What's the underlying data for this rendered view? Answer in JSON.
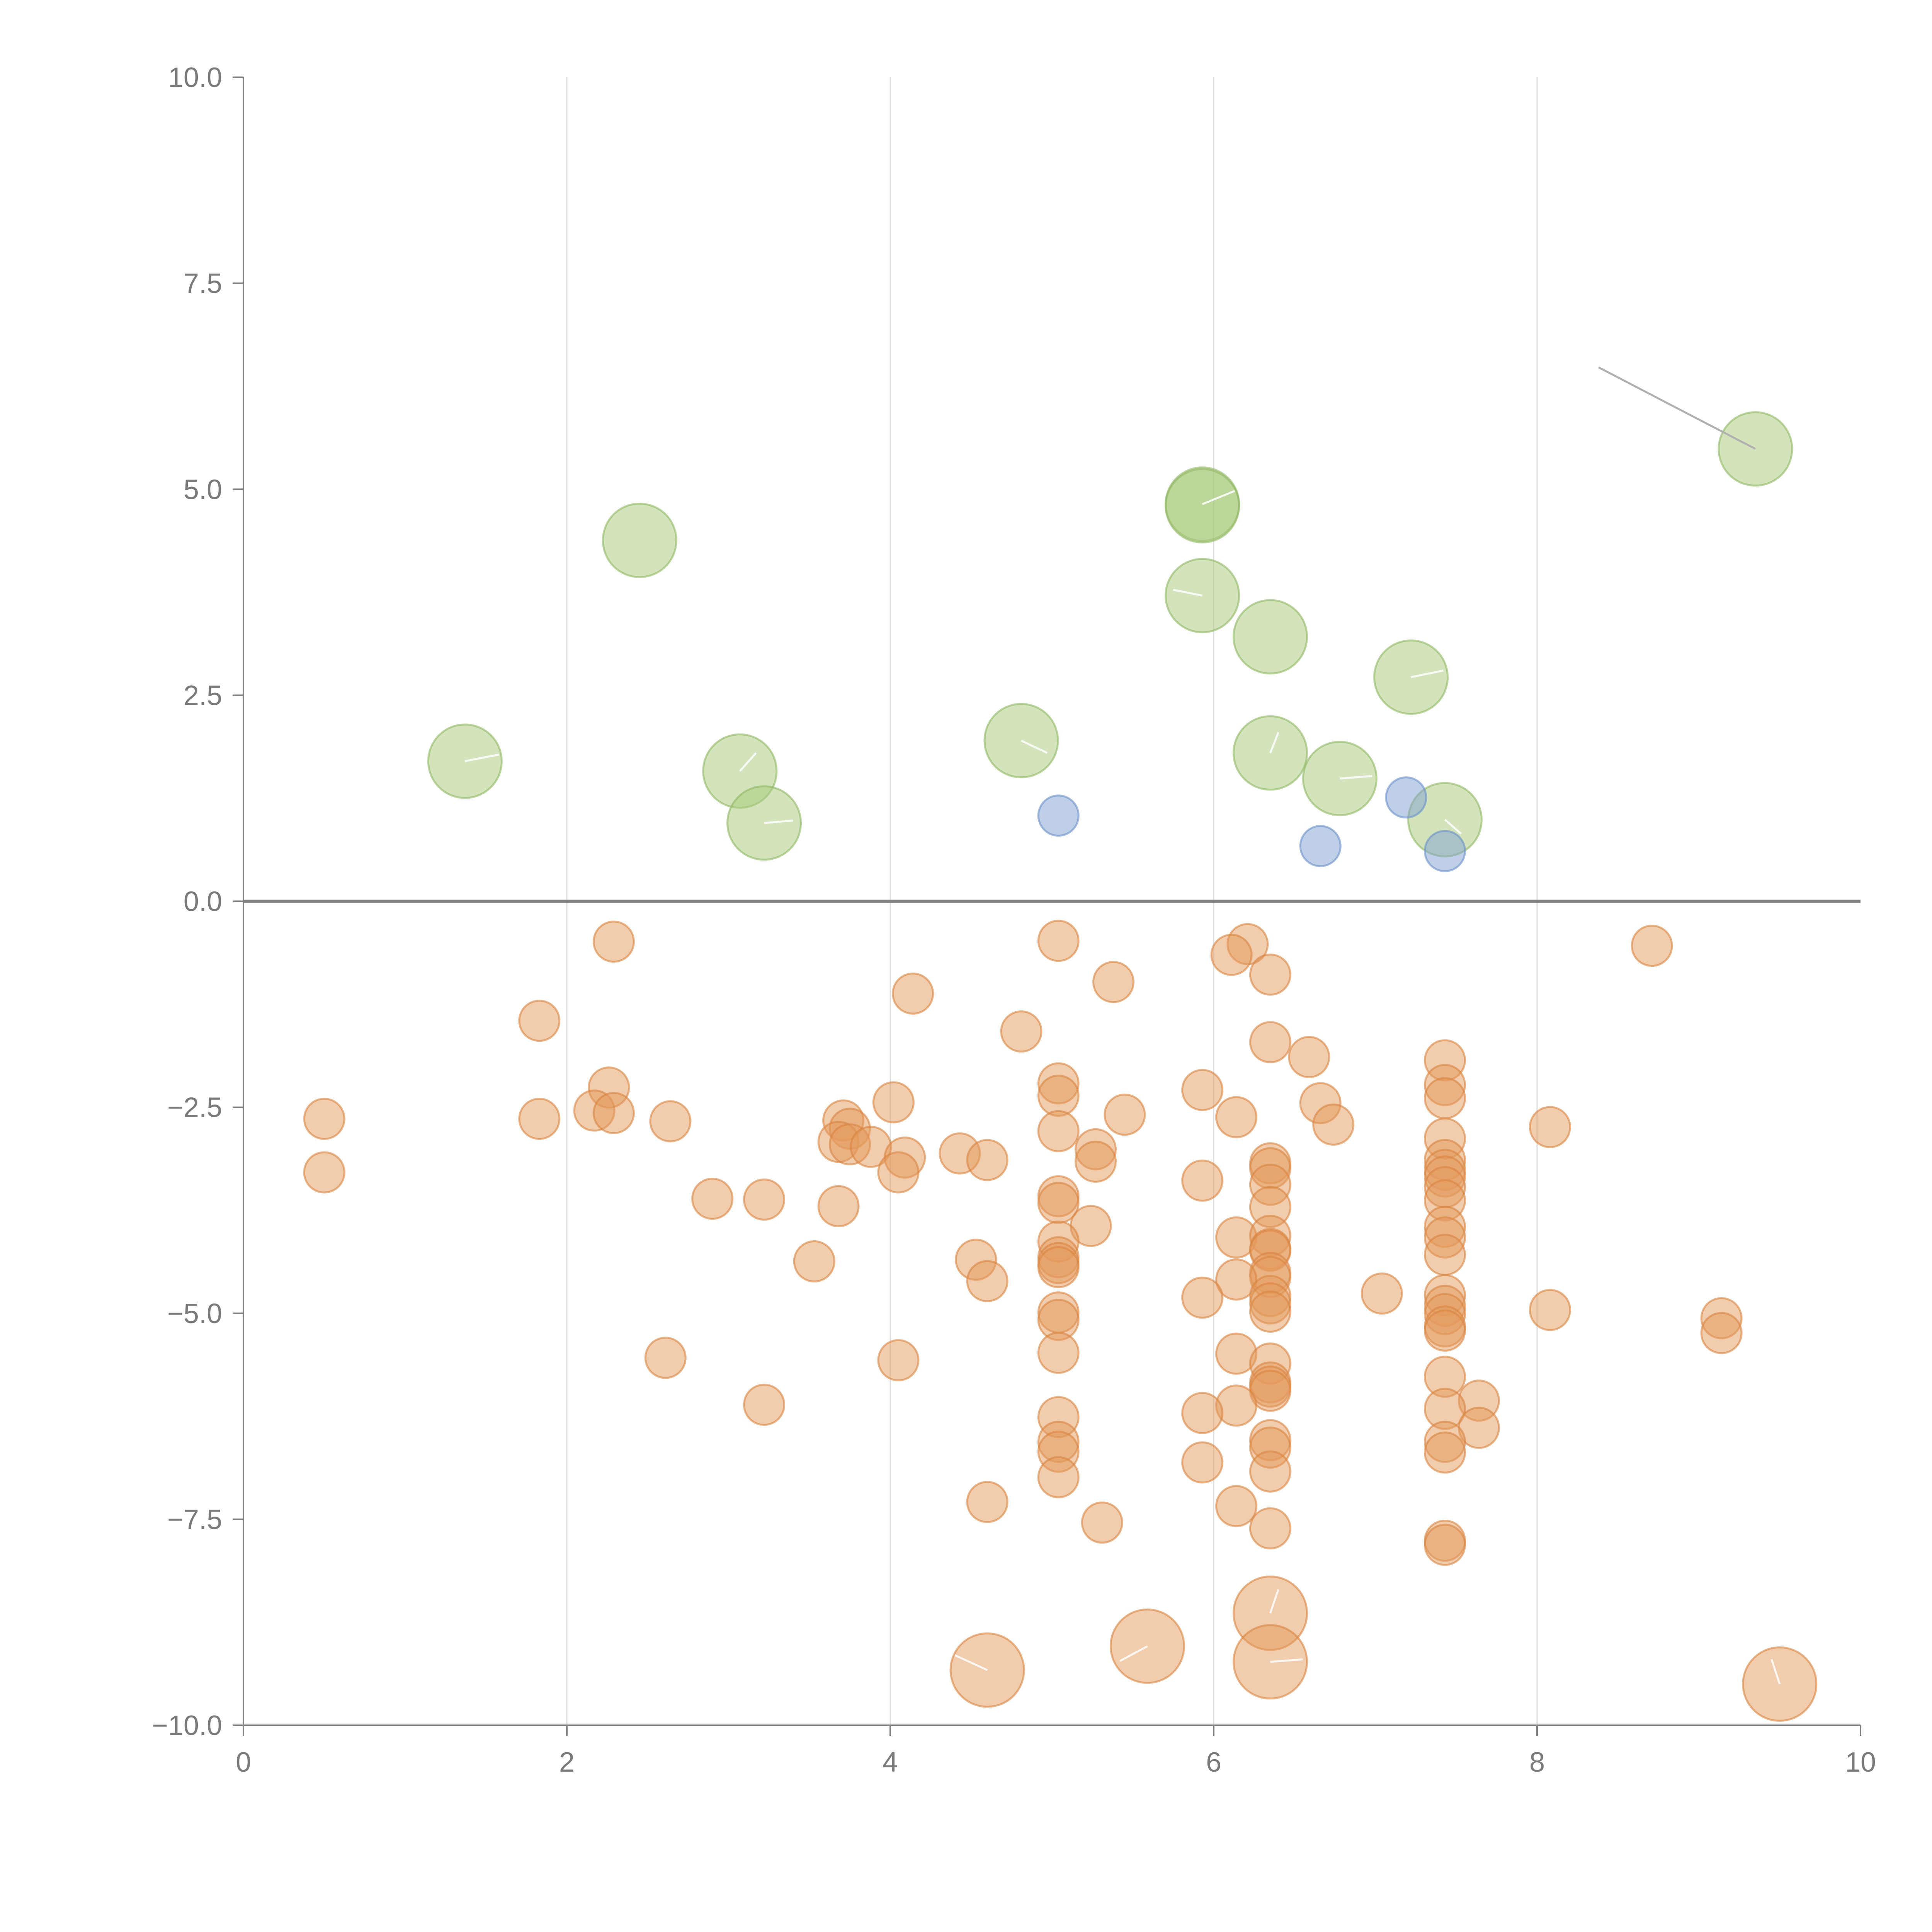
{
  "chart_data": {
    "type": "scatter",
    "title": "",
    "xlabel": "",
    "ylabel": "",
    "xlim": [
      0,
      10
    ],
    "ylim": [
      -10,
      10
    ],
    "grid": "vertical",
    "zero_line": true,
    "x_ticks": [
      0,
      2,
      4,
      6,
      8,
      10
    ],
    "x_tick_labels": [
      "0",
      "2",
      "4",
      "6",
      "8",
      "10"
    ],
    "y_ticks": [
      10,
      7.5,
      5,
      2.5,
      0,
      -2.5,
      -5,
      -7.5,
      -10
    ],
    "y_tick_labels": [
      "10.0",
      "7.5",
      "5.0",
      "2.5",
      "0.0",
      "−2.5",
      "−5.0",
      "−7.5",
      "−10.0"
    ],
    "colors": {
      "green": "#a8c97a",
      "blue": "#7fa0d2",
      "orange": "#e3995c"
    },
    "series": [
      {
        "name": "green",
        "color": "#a8c97a",
        "size": "large",
        "points": [
          [
            1.37,
            1.7
          ],
          [
            2.45,
            4.38
          ],
          [
            3.07,
            1.58
          ],
          [
            3.22,
            0.95
          ],
          [
            4.81,
            1.95
          ],
          [
            5.93,
            4.82
          ],
          [
            5.93,
            3.71
          ],
          [
            6.35,
            3.21
          ],
          [
            6.35,
            1.8
          ],
          [
            6.78,
            1.49
          ],
          [
            7.22,
            2.72
          ],
          [
            7.43,
            0.99
          ],
          [
            9.35,
            5.49
          ],
          [
            5.93,
            4.8
          ]
        ]
      },
      {
        "name": "blue",
        "color": "#7fa0d2",
        "size": "small",
        "points": [
          [
            5.04,
            1.04
          ],
          [
            6.66,
            0.67
          ],
          [
            7.19,
            1.26
          ],
          [
            7.43,
            0.61
          ]
        ]
      },
      {
        "name": "orange",
        "color": "#e3995c",
        "size": "small",
        "points": [
          [
            2.29,
            -0.49
          ],
          [
            5.04,
            -0.48
          ],
          [
            6.21,
            -0.52
          ],
          [
            6.11,
            -0.65
          ],
          [
            8.71,
            -0.54
          ],
          [
            5.38,
            -0.98
          ],
          [
            6.35,
            -0.89
          ],
          [
            4.14,
            -1.12
          ],
          [
            1.83,
            -1.45
          ],
          [
            4.81,
            -1.58
          ],
          [
            6.35,
            -1.71
          ],
          [
            6.59,
            -1.89
          ],
          [
            7.43,
            -1.93
          ],
          [
            2.26,
            -2.26
          ],
          [
            5.04,
            -2.21
          ],
          [
            7.43,
            -2.23
          ],
          [
            5.93,
            -2.29
          ],
          [
            5.04,
            -2.36
          ],
          [
            7.43,
            -2.39
          ],
          [
            4.02,
            -2.44
          ],
          [
            6.66,
            -2.45
          ],
          [
            2.17,
            -2.54
          ],
          [
            2.29,
            -2.57
          ],
          [
            6.14,
            -2.62
          ],
          [
            5.45,
            -2.59
          ],
          [
            0.5,
            -2.64
          ],
          [
            1.83,
            -2.64
          ],
          [
            2.64,
            -2.67
          ],
          [
            3.71,
            -2.66
          ],
          [
            6.74,
            -2.71
          ],
          [
            8.08,
            -2.74
          ],
          [
            3.75,
            -2.76
          ],
          [
            5.04,
            -2.79
          ],
          [
            7.43,
            -2.88
          ],
          [
            3.68,
            -2.92
          ],
          [
            3.75,
            -2.95
          ],
          [
            3.88,
            -2.98
          ],
          [
            5.27,
            -3.01
          ],
          [
            4.43,
            -3.06
          ],
          [
            4.09,
            -3.11
          ],
          [
            4.6,
            -3.14
          ],
          [
            7.43,
            -3.14
          ],
          [
            5.27,
            -3.16
          ],
          [
            6.35,
            -3.18
          ],
          [
            6.35,
            -3.24
          ],
          [
            7.43,
            -3.26
          ],
          [
            0.5,
            -3.29
          ],
          [
            4.05,
            -3.29
          ],
          [
            7.43,
            -3.34
          ],
          [
            5.93,
            -3.39
          ],
          [
            6.35,
            -3.44
          ],
          [
            7.43,
            -3.47
          ],
          [
            5.04,
            -3.58
          ],
          [
            2.9,
            -3.61
          ],
          [
            3.22,
            -3.62
          ],
          [
            7.43,
            -3.63
          ],
          [
            5.04,
            -3.66
          ],
          [
            3.68,
            -3.7
          ],
          [
            6.35,
            -3.71
          ],
          [
            5.24,
            -3.94
          ],
          [
            7.43,
            -3.95
          ],
          [
            6.14,
            -4.08
          ],
          [
            6.35,
            -4.06
          ],
          [
            7.43,
            -4.08
          ],
          [
            5.04,
            -4.13
          ],
          [
            6.35,
            -4.22
          ],
          [
            6.35,
            -4.24
          ],
          [
            5.04,
            -4.32
          ],
          [
            7.43,
            -4.29
          ],
          [
            3.53,
            -4.37
          ],
          [
            4.53,
            -4.35
          ],
          [
            5.04,
            -4.39
          ],
          [
            5.04,
            -4.44
          ],
          [
            6.35,
            -4.51
          ],
          [
            6.35,
            -4.56
          ],
          [
            6.14,
            -4.59
          ],
          [
            4.6,
            -4.61
          ],
          [
            7.04,
            -4.76
          ],
          [
            6.35,
            -4.79
          ],
          [
            7.43,
            -4.78
          ],
          [
            5.93,
            -4.81
          ],
          [
            6.35,
            -4.88
          ],
          [
            7.43,
            -4.91
          ],
          [
            8.08,
            -4.96
          ],
          [
            5.04,
            -4.99
          ],
          [
            6.35,
            -4.98
          ],
          [
            7.43,
            -5.01
          ],
          [
            9.14,
            -5.06
          ],
          [
            5.04,
            -5.08
          ],
          [
            7.43,
            -5.16
          ],
          [
            7.43,
            -5.21
          ],
          [
            9.14,
            -5.24
          ],
          [
            6.14,
            -5.49
          ],
          [
            5.04,
            -5.48
          ],
          [
            2.61,
            -5.54
          ],
          [
            4.05,
            -5.57
          ],
          [
            6.35,
            -5.61
          ],
          [
            7.43,
            -5.77
          ],
          [
            6.35,
            -5.84
          ],
          [
            6.35,
            -5.89
          ],
          [
            6.35,
            -5.94
          ],
          [
            3.22,
            -6.11
          ],
          [
            7.64,
            -6.06
          ],
          [
            6.14,
            -6.12
          ],
          [
            7.43,
            -6.16
          ],
          [
            5.93,
            -6.21
          ],
          [
            5.04,
            -6.26
          ],
          [
            7.64,
            -6.39
          ],
          [
            6.35,
            -6.54
          ],
          [
            5.04,
            -6.56
          ],
          [
            6.35,
            -6.63
          ],
          [
            7.43,
            -6.56
          ],
          [
            5.04,
            -6.68
          ],
          [
            7.43,
            -6.69
          ],
          [
            5.93,
            -6.81
          ],
          [
            6.35,
            -6.92
          ],
          [
            5.04,
            -6.99
          ],
          [
            4.6,
            -7.29
          ],
          [
            6.14,
            -7.34
          ],
          [
            5.31,
            -7.54
          ],
          [
            6.35,
            -7.61
          ],
          [
            7.43,
            -7.76
          ],
          [
            7.43,
            -7.81
          ]
        ]
      },
      {
        "name": "orange-large",
        "color": "#e3995c",
        "size": "large",
        "points": [
          [
            4.6,
            -9.33
          ],
          [
            5.59,
            -9.04
          ],
          [
            6.35,
            -8.64
          ],
          [
            6.35,
            -9.23
          ],
          [
            9.5,
            -9.5
          ]
        ]
      }
    ]
  }
}
